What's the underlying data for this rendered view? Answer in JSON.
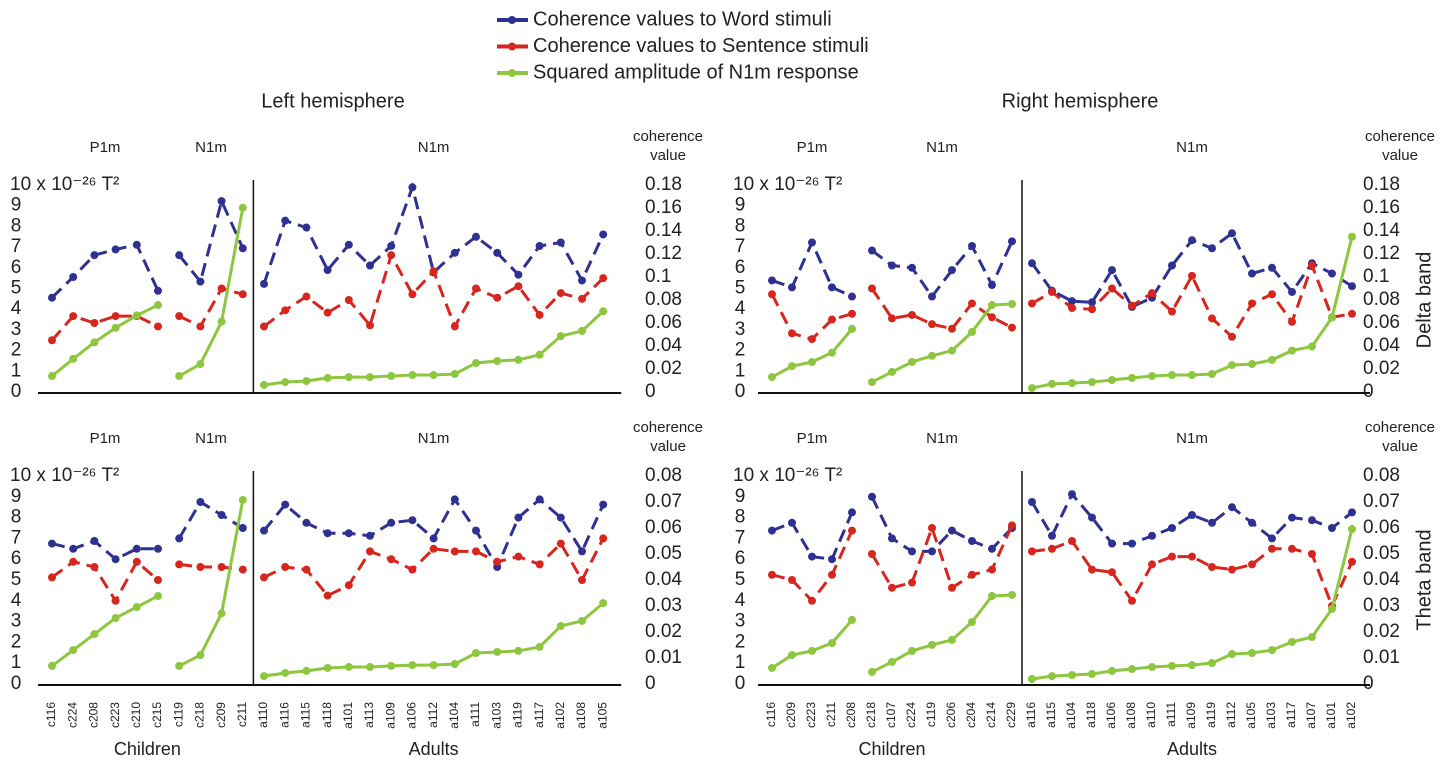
{
  "chart_data": [
    {
      "type": "line",
      "title": "Left hemisphere",
      "ylabel": "10 x 10⁻²⁶ T²",
      "y2label": "coherence value",
      "ylim": [
        0,
        10
      ],
      "yticks": [
        0,
        1,
        2,
        3,
        4,
        5,
        6,
        7,
        8,
        9
      ],
      "y2lim": [
        0,
        0.18
      ],
      "y2ticks": [
        0,
        0.02,
        0.04,
        0.06,
        0.08,
        0.1,
        0.12,
        0.14,
        0.16,
        0.18
      ],
      "panels": [
        {
          "label": "P1m",
          "series": [
            {
              "name": "Coherence values to Word stimuli",
              "color": "#2e3192",
              "dashed": true,
              "axis": "y2",
              "values": [
                0.082,
                0.1,
                0.119,
                0.124,
                0.128,
                0.088
              ]
            },
            {
              "name": "Coherence values to Sentence stimuli",
              "color": "#d7261e",
              "dashed": true,
              "axis": "y2",
              "values": [
                0.045,
                0.066,
                0.06,
                0.066,
                0.066,
                0.057
              ]
            },
            {
              "name": "Squared amplitude of N1m response",
              "color": "#8dc63f",
              "dashed": false,
              "axis": "y",
              "values": [
                0.77,
                1.6,
                2.4,
                3.1,
                3.7,
                4.2
              ]
            }
          ]
        },
        {
          "label": "N1m",
          "series": [
            {
              "color": "#2e3192",
              "dashed": true,
              "axis": "y2",
              "values": [
                0.119,
                0.096,
                0.166,
                0.125
              ]
            },
            {
              "color": "#d7261e",
              "dashed": true,
              "axis": "y2",
              "values": [
                0.066,
                0.057,
                0.09,
                0.085
              ]
            },
            {
              "color": "#8dc63f",
              "dashed": false,
              "axis": "y",
              "values": [
                0.77,
                1.35,
                3.4,
                8.9
              ]
            }
          ]
        },
        {
          "label": "N1m",
          "series": [
            {
              "color": "#2e3192",
              "dashed": true,
              "axis": "y2",
              "values": [
                0.094,
                0.149,
                0.143,
                0.106,
                0.128,
                0.11,
                0.127,
                0.178,
                0.104,
                0.121,
                0.135,
                0.121,
                0.102,
                0.127,
                0.13,
                0.097,
                0.137
              ]
            },
            {
              "color": "#d7261e",
              "dashed": true,
              "axis": "y2",
              "values": [
                0.057,
                0.071,
                0.083,
                0.069,
                0.08,
                0.058,
                0.119,
                0.085,
                0.105,
                0.057,
                0.09,
                0.082,
                0.092,
                0.067,
                0.086,
                0.081,
                0.099
              ]
            },
            {
              "color": "#8dc63f",
              "dashed": false,
              "axis": "y",
              "values": [
                0.34,
                0.48,
                0.53,
                0.68,
                0.72,
                0.72,
                0.77,
                0.82,
                0.82,
                0.87,
                1.4,
                1.5,
                1.55,
                1.8,
                2.7,
                2.95,
                3.9
              ]
            }
          ]
        }
      ]
    },
    {
      "type": "line",
      "title": "Right hemisphere",
      "side_label": "Delta band",
      "ylabel": "10 x 10⁻²⁶ T²",
      "y2label": "coherence value",
      "ylim": [
        0,
        10
      ],
      "yticks": [
        0,
        1,
        2,
        3,
        4,
        5,
        6,
        7,
        8,
        9
      ],
      "y2lim": [
        0,
        0.18
      ],
      "y2ticks": [
        0,
        0.02,
        0.04,
        0.06,
        0.08,
        0.1,
        0.12,
        0.14,
        0.16,
        0.18
      ],
      "panels": [
        {
          "label": "P1m",
          "series": [
            {
              "color": "#2e3192",
              "dashed": true,
              "axis": "y2",
              "values": [
                0.097,
                0.091,
                0.13,
                0.091,
                0.083
              ]
            },
            {
              "color": "#d7261e",
              "dashed": true,
              "axis": "y2",
              "values": [
                0.085,
                0.051,
                0.046,
                0.063,
                0.068
              ]
            },
            {
              "color": "#8dc63f",
              "dashed": false,
              "axis": "y",
              "values": [
                0.72,
                1.25,
                1.45,
                1.9,
                3.05
              ]
            }
          ]
        },
        {
          "label": "N1m",
          "series": [
            {
              "color": "#2e3192",
              "dashed": true,
              "axis": "y2",
              "values": [
                0.123,
                0.11,
                0.108,
                0.083,
                0.106,
                0.127,
                0.093,
                0.131
              ]
            },
            {
              "color": "#d7261e",
              "dashed": true,
              "axis": "y2",
              "values": [
                0.09,
                0.064,
                0.067,
                0.059,
                0.055,
                0.077,
                0.065,
                0.056
              ]
            },
            {
              "color": "#8dc63f",
              "dashed": false,
              "axis": "y",
              "values": [
                0.48,
                0.97,
                1.45,
                1.75,
                2.0,
                2.9,
                4.2,
                4.25
              ]
            }
          ]
        },
        {
          "label": "N1m",
          "series": [
            {
              "color": "#2e3192",
              "dashed": true,
              "axis": "y2",
              "values": [
                0.112,
                0.088,
                0.079,
                0.078,
                0.106,
                0.074,
                0.082,
                0.11,
                0.132,
                0.125,
                0.138,
                0.103,
                0.108,
                0.087,
                0.112,
                0.103,
                0.092
              ]
            },
            {
              "color": "#d7261e",
              "dashed": true,
              "axis": "y2",
              "values": [
                0.077,
                0.087,
                0.073,
                0.072,
                0.09,
                0.075,
                0.086,
                0.07,
                0.101,
                0.064,
                0.048,
                0.077,
                0.085,
                0.061,
                0.11,
                0.065,
                0.068
              ]
            },
            {
              "color": "#8dc63f",
              "dashed": false,
              "axis": "y",
              "values": [
                0.19,
                0.39,
                0.43,
                0.48,
                0.58,
                0.68,
                0.77,
                0.82,
                0.82,
                0.87,
                1.3,
                1.35,
                1.55,
                2.0,
                2.2,
                3.6,
                7.5
              ]
            }
          ]
        }
      ]
    },
    {
      "type": "line",
      "ylabel": "10 x 10⁻²⁶ T²",
      "y2label": "coherence value",
      "ylim": [
        0,
        10
      ],
      "yticks": [
        0,
        1,
        2,
        3,
        4,
        5,
        6,
        7,
        8,
        9
      ],
      "y2lim": [
        0,
        0.08
      ],
      "y2ticks": [
        0,
        0.01,
        0.02,
        0.03,
        0.04,
        0.05,
        0.06,
        0.07,
        0.08
      ],
      "groups": [
        "Children",
        "Adults"
      ],
      "panels": [
        {
          "label": "P1m",
          "categories": [
            "c116",
            "c224",
            "c208",
            "c223",
            "c210",
            "c215"
          ],
          "series": [
            {
              "color": "#2e3192",
              "dashed": true,
              "axis": "y2",
              "values": [
                0.054,
                0.052,
                0.055,
                0.048,
                0.052,
                0.052
              ]
            },
            {
              "color": "#d7261e",
              "dashed": true,
              "axis": "y2",
              "values": [
                0.041,
                0.047,
                0.045,
                0.032,
                0.047,
                0.04
              ]
            },
            {
              "color": "#8dc63f",
              "dashed": false,
              "axis": "y",
              "values": [
                0.87,
                1.63,
                2.4,
                3.17,
                3.7,
                4.23
              ]
            }
          ]
        },
        {
          "label": "N1m",
          "categories": [
            "c119",
            "c218",
            "c209",
            "c211"
          ],
          "series": [
            {
              "color": "#2e3192",
              "dashed": true,
              "axis": "y2",
              "values": [
                0.056,
                0.07,
                0.065,
                0.06
              ]
            },
            {
              "color": "#d7261e",
              "dashed": true,
              "axis": "y2",
              "values": [
                0.046,
                0.045,
                0.045,
                0.044
              ]
            },
            {
              "color": "#8dc63f",
              "dashed": false,
              "axis": "y",
              "values": [
                0.87,
                1.39,
                3.4,
                8.85
              ]
            }
          ]
        },
        {
          "label": "N1m",
          "categories": [
            "a110",
            "a116",
            "a115",
            "a118",
            "a101",
            "a113",
            "a109",
            "a106",
            "a112",
            "a104",
            "a111",
            "a103",
            "a119",
            "a117",
            "a102",
            "a108",
            "a105"
          ],
          "series": [
            {
              "color": "#2e3192",
              "dashed": true,
              "axis": "y2",
              "values": [
                0.059,
                0.069,
                0.062,
                0.058,
                0.058,
                0.057,
                0.062,
                0.063,
                0.056,
                0.071,
                0.059,
                0.045,
                0.064,
                0.071,
                0.064,
                0.051,
                0.069
              ]
            },
            {
              "color": "#d7261e",
              "dashed": true,
              "axis": "y2",
              "values": [
                0.041,
                0.045,
                0.044,
                0.034,
                0.038,
                0.051,
                0.048,
                0.044,
                0.052,
                0.051,
                0.051,
                0.047,
                0.049,
                0.046,
                0.054,
                0.04,
                0.056
              ]
            },
            {
              "color": "#8dc63f",
              "dashed": false,
              "axis": "y",
              "values": [
                0.38,
                0.53,
                0.63,
                0.77,
                0.82,
                0.82,
                0.87,
                0.91,
                0.91,
                0.96,
                1.49,
                1.54,
                1.59,
                1.78,
                2.79,
                3.03,
                3.89
              ]
            }
          ]
        }
      ]
    },
    {
      "type": "line",
      "side_label": "Theta band",
      "ylabel": "10 x 10⁻²⁶ T²",
      "y2label": "coherence value",
      "ylim": [
        0,
        10
      ],
      "yticks": [
        0,
        1,
        2,
        3,
        4,
        5,
        6,
        7,
        8,
        9
      ],
      "y2lim": [
        0,
        0.08
      ],
      "y2ticks": [
        0,
        0.01,
        0.02,
        0.03,
        0.04,
        0.05,
        0.06,
        0.07,
        0.08
      ],
      "groups": [
        "Children",
        "Adults"
      ],
      "panels": [
        {
          "label": "P1m",
          "categories": [
            "c116",
            "c209",
            "c223",
            "c211",
            "c208"
          ],
          "series": [
            {
              "color": "#2e3192",
              "dashed": true,
              "axis": "y2",
              "values": [
                0.059,
                0.062,
                0.049,
                0.048,
                0.066
              ]
            },
            {
              "color": "#d7261e",
              "dashed": true,
              "axis": "y2",
              "values": [
                0.042,
                0.04,
                0.032,
                0.042,
                0.059
              ]
            },
            {
              "color": "#8dc63f",
              "dashed": false,
              "axis": "y",
              "values": [
                0.77,
                1.39,
                1.59,
                1.97,
                3.08
              ]
            }
          ]
        },
        {
          "label": "N1m",
          "categories": [
            "c218",
            "c107",
            "c224",
            "c119",
            "c206",
            "c204",
            "c214",
            "c229"
          ],
          "series": [
            {
              "color": "#2e3192",
              "dashed": true,
              "axis": "y2",
              "values": [
                0.072,
                0.056,
                0.051,
                0.051,
                0.059,
                0.055,
                0.052,
                0.06
              ]
            },
            {
              "color": "#d7261e",
              "dashed": true,
              "axis": "y2",
              "values": [
                0.05,
                0.037,
                0.039,
                0.06,
                0.037,
                0.042,
                0.044,
                0.061
              ]
            },
            {
              "color": "#8dc63f",
              "dashed": false,
              "axis": "y",
              "values": [
                0.58,
                1.06,
                1.59,
                1.88,
                2.12,
                2.98,
                4.23,
                4.28
              ]
            }
          ]
        },
        {
          "label": "N1m",
          "categories": [
            "a116",
            "a115",
            "a104",
            "a118",
            "a106",
            "a108",
            "a110",
            "a111",
            "a109",
            "a119",
            "a112",
            "a105",
            "a103",
            "a117",
            "a107",
            "a101",
            "a102"
          ],
          "series": [
            {
              "color": "#2e3192",
              "dashed": true,
              "axis": "y2",
              "values": [
                0.07,
                0.057,
                0.073,
                0.064,
                0.054,
                0.054,
                0.057,
                0.06,
                0.065,
                0.062,
                0.068,
                0.062,
                0.056,
                0.064,
                0.063,
                0.06,
                0.066
              ]
            },
            {
              "color": "#d7261e",
              "dashed": true,
              "axis": "y2",
              "values": [
                0.051,
                0.052,
                0.055,
                0.044,
                0.043,
                0.032,
                0.046,
                0.049,
                0.049,
                0.045,
                0.044,
                0.046,
                0.052,
                0.052,
                0.05,
                0.03,
                0.047
              ]
            },
            {
              "color": "#8dc63f",
              "dashed": false,
              "axis": "y",
              "values": [
                0.24,
                0.38,
                0.43,
                0.48,
                0.63,
                0.72,
                0.82,
                0.87,
                0.91,
                1.01,
                1.44,
                1.49,
                1.63,
                2.02,
                2.26,
                3.61,
                7.45
              ]
            }
          ]
        }
      ]
    }
  ]
}
